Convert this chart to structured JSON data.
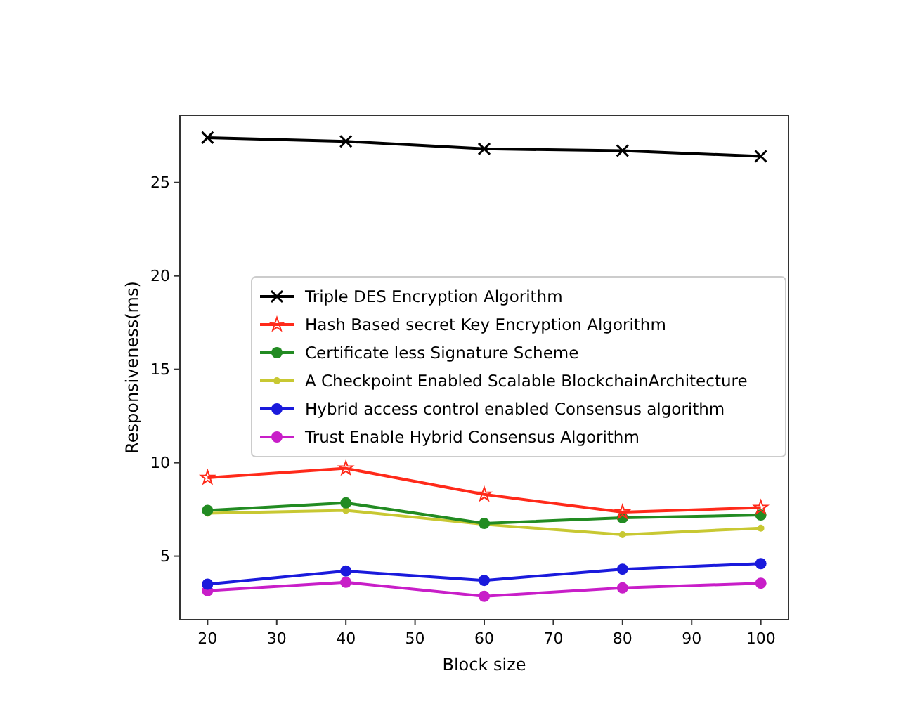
{
  "chart_data": {
    "type": "line",
    "xlabel": "Block size",
    "ylabel": "Responsiveness(ms)",
    "x": [
      20,
      40,
      60,
      80,
      100
    ],
    "xlim": [
      16,
      104
    ],
    "xticks": [
      20,
      30,
      40,
      50,
      60,
      70,
      80,
      90,
      100
    ],
    "ylim": [
      1.6,
      28.6
    ],
    "yticks": [
      5,
      10,
      15,
      20,
      25
    ],
    "legend": "center right",
    "grid": false,
    "series": [
      {
        "name": "Triple DES Encryption Algorithm",
        "color": "#000000",
        "marker": "cross",
        "values": [
          27.4,
          27.2,
          26.8,
          26.7,
          26.4
        ]
      },
      {
        "name": "Hash Based secret Key Encryption Algorithm",
        "color": "#ff2a1a",
        "marker": "star",
        "values": [
          9.2,
          9.7,
          8.3,
          7.35,
          7.6
        ]
      },
      {
        "name": "Certificate less Signature Scheme",
        "color": "#228b22",
        "marker": "circle",
        "values": [
          7.45,
          7.85,
          6.75,
          7.05,
          7.2
        ]
      },
      {
        "name": "A Checkpoint Enabled Scalable BlockchainArchitecture",
        "color": "#c8c832",
        "marker": "circle",
        "values": [
          7.3,
          7.45,
          6.7,
          6.15,
          6.5
        ]
      },
      {
        "name": "Hybrid access control enabled Consensus algorithm",
        "color": "#1a1adc",
        "marker": "circle",
        "values": [
          3.5,
          4.2,
          3.7,
          4.3,
          4.6
        ]
      },
      {
        "name": "Trust Enable Hybrid Consensus Algorithm",
        "color": "#c81ec8",
        "marker": "circle",
        "values": [
          3.15,
          3.6,
          2.85,
          3.3,
          3.55
        ]
      }
    ]
  }
}
